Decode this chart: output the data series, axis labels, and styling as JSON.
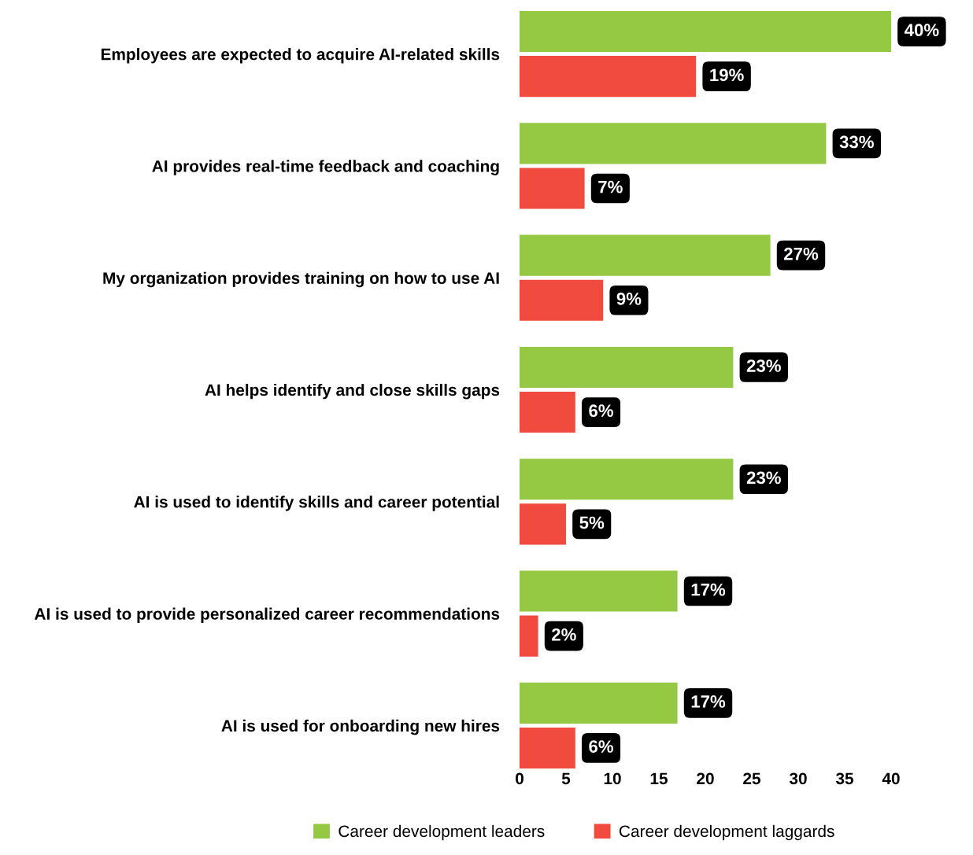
{
  "chart_data": {
    "type": "bar",
    "orientation": "horizontal",
    "categories": [
      "Employees are expected to acquire AI-related skills",
      "AI provides real-time feedback and coaching",
      "My organization provides training on how to use AI",
      "AI helps identify and close skills gaps",
      "AI is used to identify skills and career potential",
      "AI is used to provide personalized career recommendations",
      "AI is used for onboarding new hires"
    ],
    "series": [
      {
        "name": "Career development leaders",
        "color": "#95c943",
        "values": [
          40,
          33,
          27,
          23,
          23,
          17,
          17
        ],
        "value_labels": [
          "40%",
          "33%",
          "27%",
          "23%",
          "23%",
          "17%",
          "17%"
        ]
      },
      {
        "name": "Career development laggards",
        "color": "#f04b3e",
        "values": [
          19,
          7,
          9,
          6,
          5,
          2,
          6
        ],
        "value_labels": [
          "19%",
          "7%",
          "9%",
          "6%",
          "5%",
          "2%",
          "6%"
        ]
      }
    ],
    "xlim": [
      0,
      40
    ],
    "xticks": [
      0,
      5,
      10,
      15,
      20,
      25,
      30,
      35,
      40
    ],
    "grid": false,
    "legend": "bottom"
  }
}
